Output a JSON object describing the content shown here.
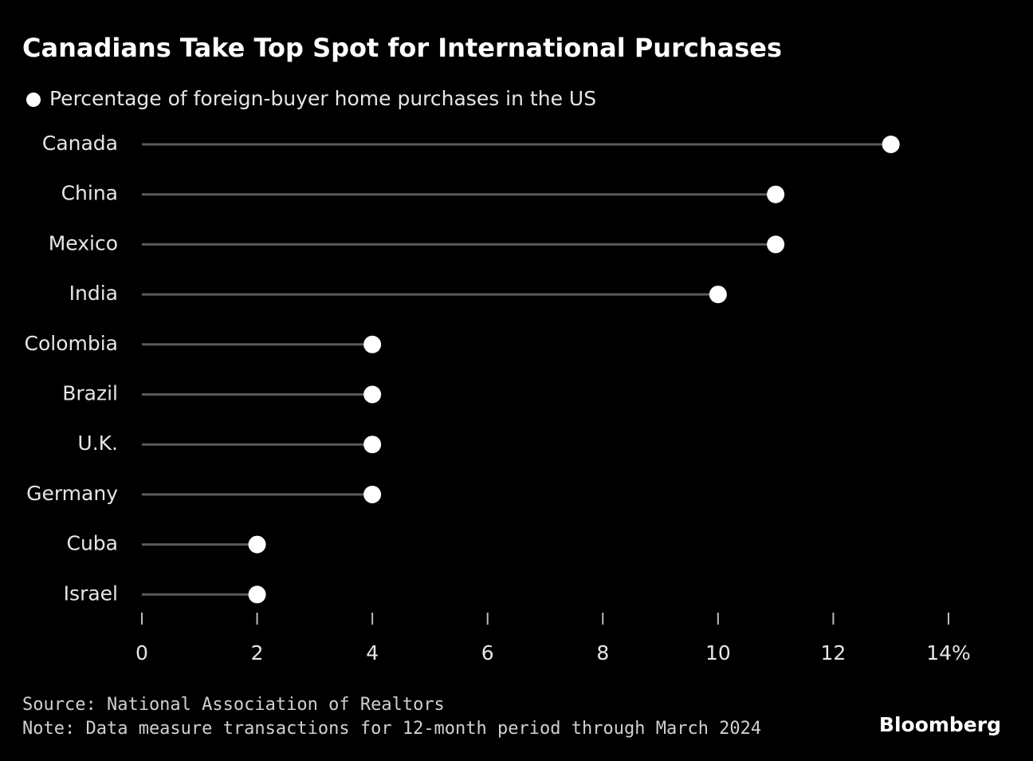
{
  "chart_data": {
    "type": "lollipop",
    "title": "Canadians Take Top Spot for International Purchases",
    "categories": [
      "Canada",
      "China",
      "Mexico",
      "India",
      "Colombia",
      "Brazil",
      "U.K.",
      "Germany",
      "Cuba",
      "Israel"
    ],
    "series": [
      {
        "name": "Percentage of foreign-buyer home purchases in the US",
        "color": "#ffffff",
        "stem_color": "#5a5a5a",
        "values": [
          13,
          11,
          11,
          10,
          4,
          4,
          4,
          4,
          2,
          2
        ]
      }
    ],
    "xlim": [
      0,
      14
    ],
    "xticks": [
      0,
      2,
      4,
      6,
      8,
      10,
      12,
      {
        "value": 14,
        "label": "14%"
      }
    ],
    "source": "Source: National Association of Realtors",
    "note": "Note: Data measure transactions for 12-month period through March 2024",
    "brand": "Bloomberg"
  }
}
